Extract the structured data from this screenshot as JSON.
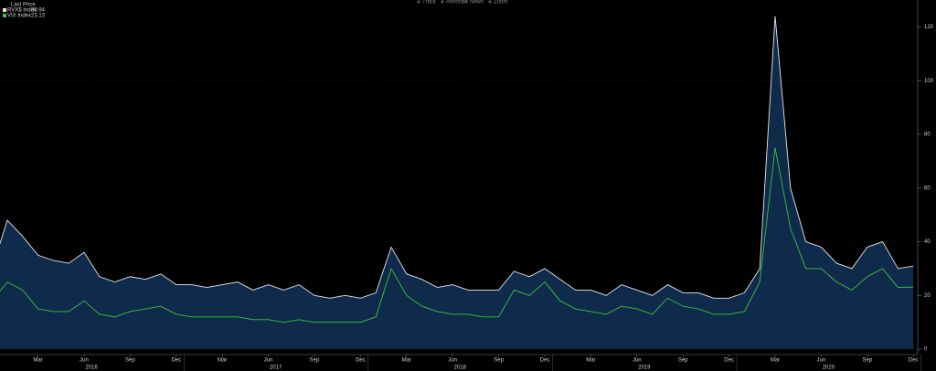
{
  "toolbar": [
    "Track",
    "Annotate",
    "News",
    "Zoom"
  ],
  "chart_data": {
    "type": "line",
    "legend_title": "Last Price",
    "x": [
      "2015-12",
      "2016-01",
      "2016-02",
      "2016-03",
      "2016-04",
      "2016-05",
      "2016-06",
      "2016-07",
      "2016-08",
      "2016-09",
      "2016-10",
      "2016-11",
      "2016-12",
      "2017-01",
      "2017-02",
      "2017-03",
      "2017-04",
      "2017-05",
      "2017-06",
      "2017-07",
      "2017-08",
      "2017-09",
      "2017-10",
      "2017-11",
      "2017-12",
      "2018-01",
      "2018-02",
      "2018-03",
      "2018-04",
      "2018-05",
      "2018-06",
      "2018-07",
      "2018-08",
      "2018-09",
      "2018-10",
      "2018-11",
      "2018-12",
      "2019-01",
      "2019-02",
      "2019-03",
      "2019-04",
      "2019-05",
      "2019-06",
      "2019-07",
      "2019-08",
      "2019-09",
      "2019-10",
      "2019-11",
      "2019-12",
      "2020-01",
      "2020-02",
      "2020-03",
      "2020-04",
      "2020-05",
      "2020-06",
      "2020-07",
      "2020-08",
      "2020-09",
      "2020-10",
      "2020-11",
      "2020-12"
    ],
    "series": [
      {
        "name": "RVX$ Index",
        "color": "#e8e8e8",
        "fill": "#0f2a4a",
        "values": [
          30,
          48,
          42,
          35,
          33,
          32,
          36,
          27,
          25,
          27,
          26,
          28,
          24,
          24,
          23,
          24,
          25,
          22,
          24,
          22,
          24,
          20,
          19,
          20,
          19,
          21,
          38,
          28,
          26,
          23,
          24,
          22,
          22,
          22,
          29,
          27,
          30,
          26,
          22,
          22,
          20,
          24,
          22,
          20,
          24,
          21,
          21,
          19,
          19,
          21,
          30,
          124,
          60,
          40,
          38,
          32,
          30,
          38,
          40,
          30,
          30.94
        ]
      },
      {
        "name": "VIX Index",
        "color": "#3cc43c",
        "values": [
          18,
          25,
          22,
          15,
          14,
          14,
          18,
          13,
          12,
          14,
          15,
          16,
          13,
          12,
          12,
          12,
          12,
          11,
          11,
          10,
          11,
          10,
          10,
          10,
          10,
          12,
          30,
          20,
          16,
          14,
          13,
          13,
          12,
          12,
          22,
          20,
          25,
          18,
          15,
          14,
          13,
          16,
          15,
          13,
          19,
          16,
          15,
          13,
          13,
          14,
          25,
          75,
          45,
          30,
          30,
          25,
          22,
          27,
          30,
          23,
          23.13
        ]
      }
    ],
    "ylim": [
      -2,
      130
    ],
    "yticks": [
      0,
      20,
      40,
      60,
      80,
      100,
      120
    ],
    "grid": true,
    "xticks": [
      {
        "value": "2016-03",
        "label": "Mar"
      },
      {
        "value": "2016-06",
        "label": "Jun"
      },
      {
        "value": "2016-09",
        "label": "Sep"
      },
      {
        "value": "2016-12",
        "label": "Dec"
      },
      {
        "value": "2017-03",
        "label": "Mar"
      },
      {
        "value": "2017-06",
        "label": "Jun"
      },
      {
        "value": "2017-09",
        "label": "Sep"
      },
      {
        "value": "2017-12",
        "label": "Dec"
      },
      {
        "value": "2018-03",
        "label": "Mar"
      },
      {
        "value": "2018-06",
        "label": "Jun"
      },
      {
        "value": "2018-09",
        "label": "Sep"
      },
      {
        "value": "2018-12",
        "label": "Dec"
      },
      {
        "value": "2019-03",
        "label": "Mar"
      },
      {
        "value": "2019-06",
        "label": "Jun"
      },
      {
        "value": "2019-09",
        "label": "Sep"
      },
      {
        "value": "2019-12",
        "label": "Dec"
      },
      {
        "value": "2020-03",
        "label": "Mar"
      },
      {
        "value": "2020-06",
        "label": "Jun"
      },
      {
        "value": "2020-09",
        "label": "Sep"
      },
      {
        "value": "2020-12",
        "label": "Dec"
      }
    ],
    "years": [
      {
        "value": "2016-06",
        "label": "2016"
      },
      {
        "value": "2017-06",
        "label": "2017"
      },
      {
        "value": "2018-06",
        "label": "2018"
      },
      {
        "value": "2019-06",
        "label": "2019"
      },
      {
        "value": "2020-06",
        "label": "2020"
      }
    ]
  }
}
